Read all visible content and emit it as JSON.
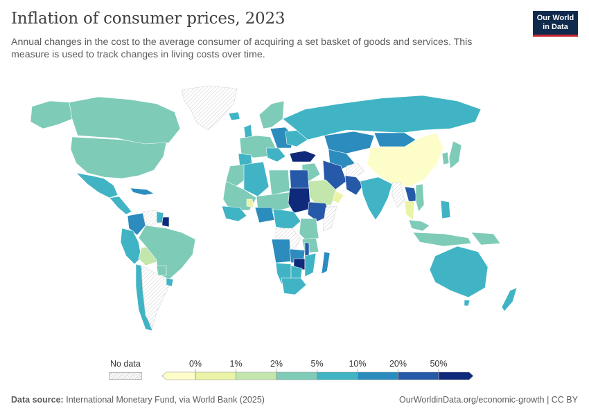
{
  "header": {
    "title": "Inflation of consumer prices, 2023",
    "subtitle": "Annual changes in the cost to the average consumer of acquiring a set basket of goods and services. This measure is used to track changes in living costs over time."
  },
  "logo": {
    "line1": "Our World",
    "line2": "in Data",
    "bg_color": "#0f2a4d",
    "accent_color": "#c62530"
  },
  "legend": {
    "no_data_label": "No data",
    "ticks": [
      "0%",
      "1%",
      "2%",
      "5%",
      "10%",
      "20%",
      "50%"
    ],
    "colors": [
      "#fdfdc9",
      "#eaf3a6",
      "#c2e6ac",
      "#7ecbb8",
      "#40b4c4",
      "#2c8cbe",
      "#2659a8",
      "#0f2a7a"
    ]
  },
  "footer": {
    "source_label": "Data source:",
    "source_text": "International Monetary Fund, via World Bank (2025)",
    "right_text": "OurWorldinData.org/economic-growth | CC BY"
  },
  "colors": {
    "no_data": "#ececec",
    "border": "#ffffff"
  }
}
